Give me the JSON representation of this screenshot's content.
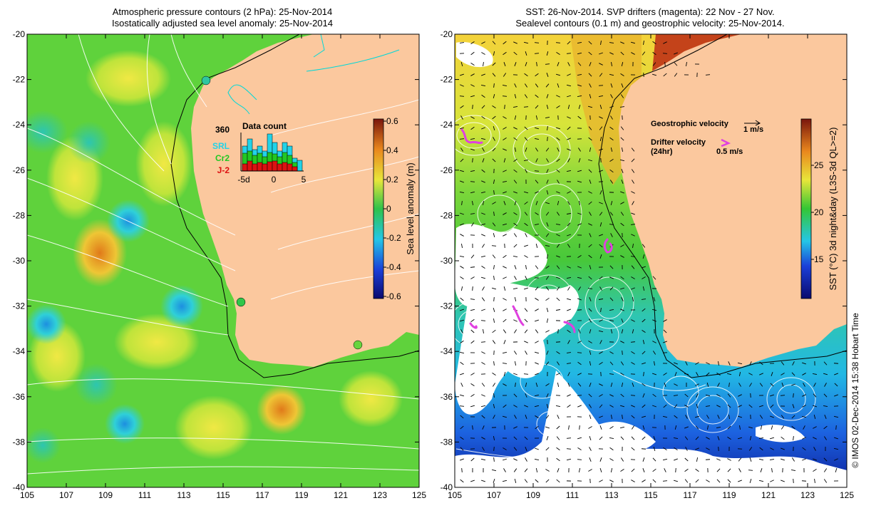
{
  "left_map": {
    "title_line1": "Atmospheric pressure contours (2 hPa): 25-Nov-2014",
    "title_line2": "Isostatically adjusted sea level anomaly: 25-Nov-2014",
    "x_ticks": [
      "105",
      "107",
      "109",
      "111",
      "113",
      "115",
      "117",
      "119",
      "121",
      "123",
      "125"
    ],
    "y_ticks": [
      "-20",
      "-22",
      "-24",
      "-26",
      "-28",
      "-30",
      "-32",
      "-34",
      "-36",
      "-38",
      "-40"
    ],
    "colorbar": {
      "label": "Sea level anomaly (m)",
      "ticks": [
        "0.6",
        "0.4",
        "0.2",
        "0",
        "-0.2",
        "-0.4",
        "-0.6"
      ]
    },
    "inset": {
      "title": "Data count",
      "max_count": "360",
      "legend": [
        "SRL",
        "Cr2",
        "J-2"
      ],
      "legend_colors": [
        "#22d3e8",
        "#22c822",
        "#dd1111"
      ],
      "x_ticks": [
        "-5d",
        "0",
        "5"
      ]
    }
  },
  "right_map": {
    "title_line1": "SST: 26-Nov-2014. SVP drifters (magenta): 22 Nov - 27 Nov.",
    "title_line2": "Sealevel contours (0.1 m) and geostrophic velocity: 25-Nov-2014.",
    "x_ticks": [
      "105",
      "107",
      "109",
      "111",
      "113",
      "115",
      "117",
      "119",
      "121",
      "123",
      "125"
    ],
    "y_ticks": [
      "-20",
      "-22",
      "-24",
      "-26",
      "-28",
      "-30",
      "-32",
      "-34",
      "-36",
      "-38",
      "-40"
    ],
    "colorbar": {
      "label": "SST (°C) 3d night&day (L3S-3d QL>=2)",
      "ticks": [
        "25",
        "20",
        "15"
      ]
    },
    "legend": {
      "geostrophic_label": "Geostrophic velocity",
      "geostrophic_scale": "1 m/s",
      "drifter_label": "Drifter velocity",
      "drifter_sub": "(24hr)",
      "drifter_scale": "0.5 m/s"
    }
  },
  "credit": "© IMOS 02-Dec-2014 15:38 Hobart Time",
  "colors": {
    "land": "#fbc89e",
    "ocean_green": "#5fd23c",
    "drifter": "#e040e0",
    "coast_contour": "#00d8d8"
  }
}
